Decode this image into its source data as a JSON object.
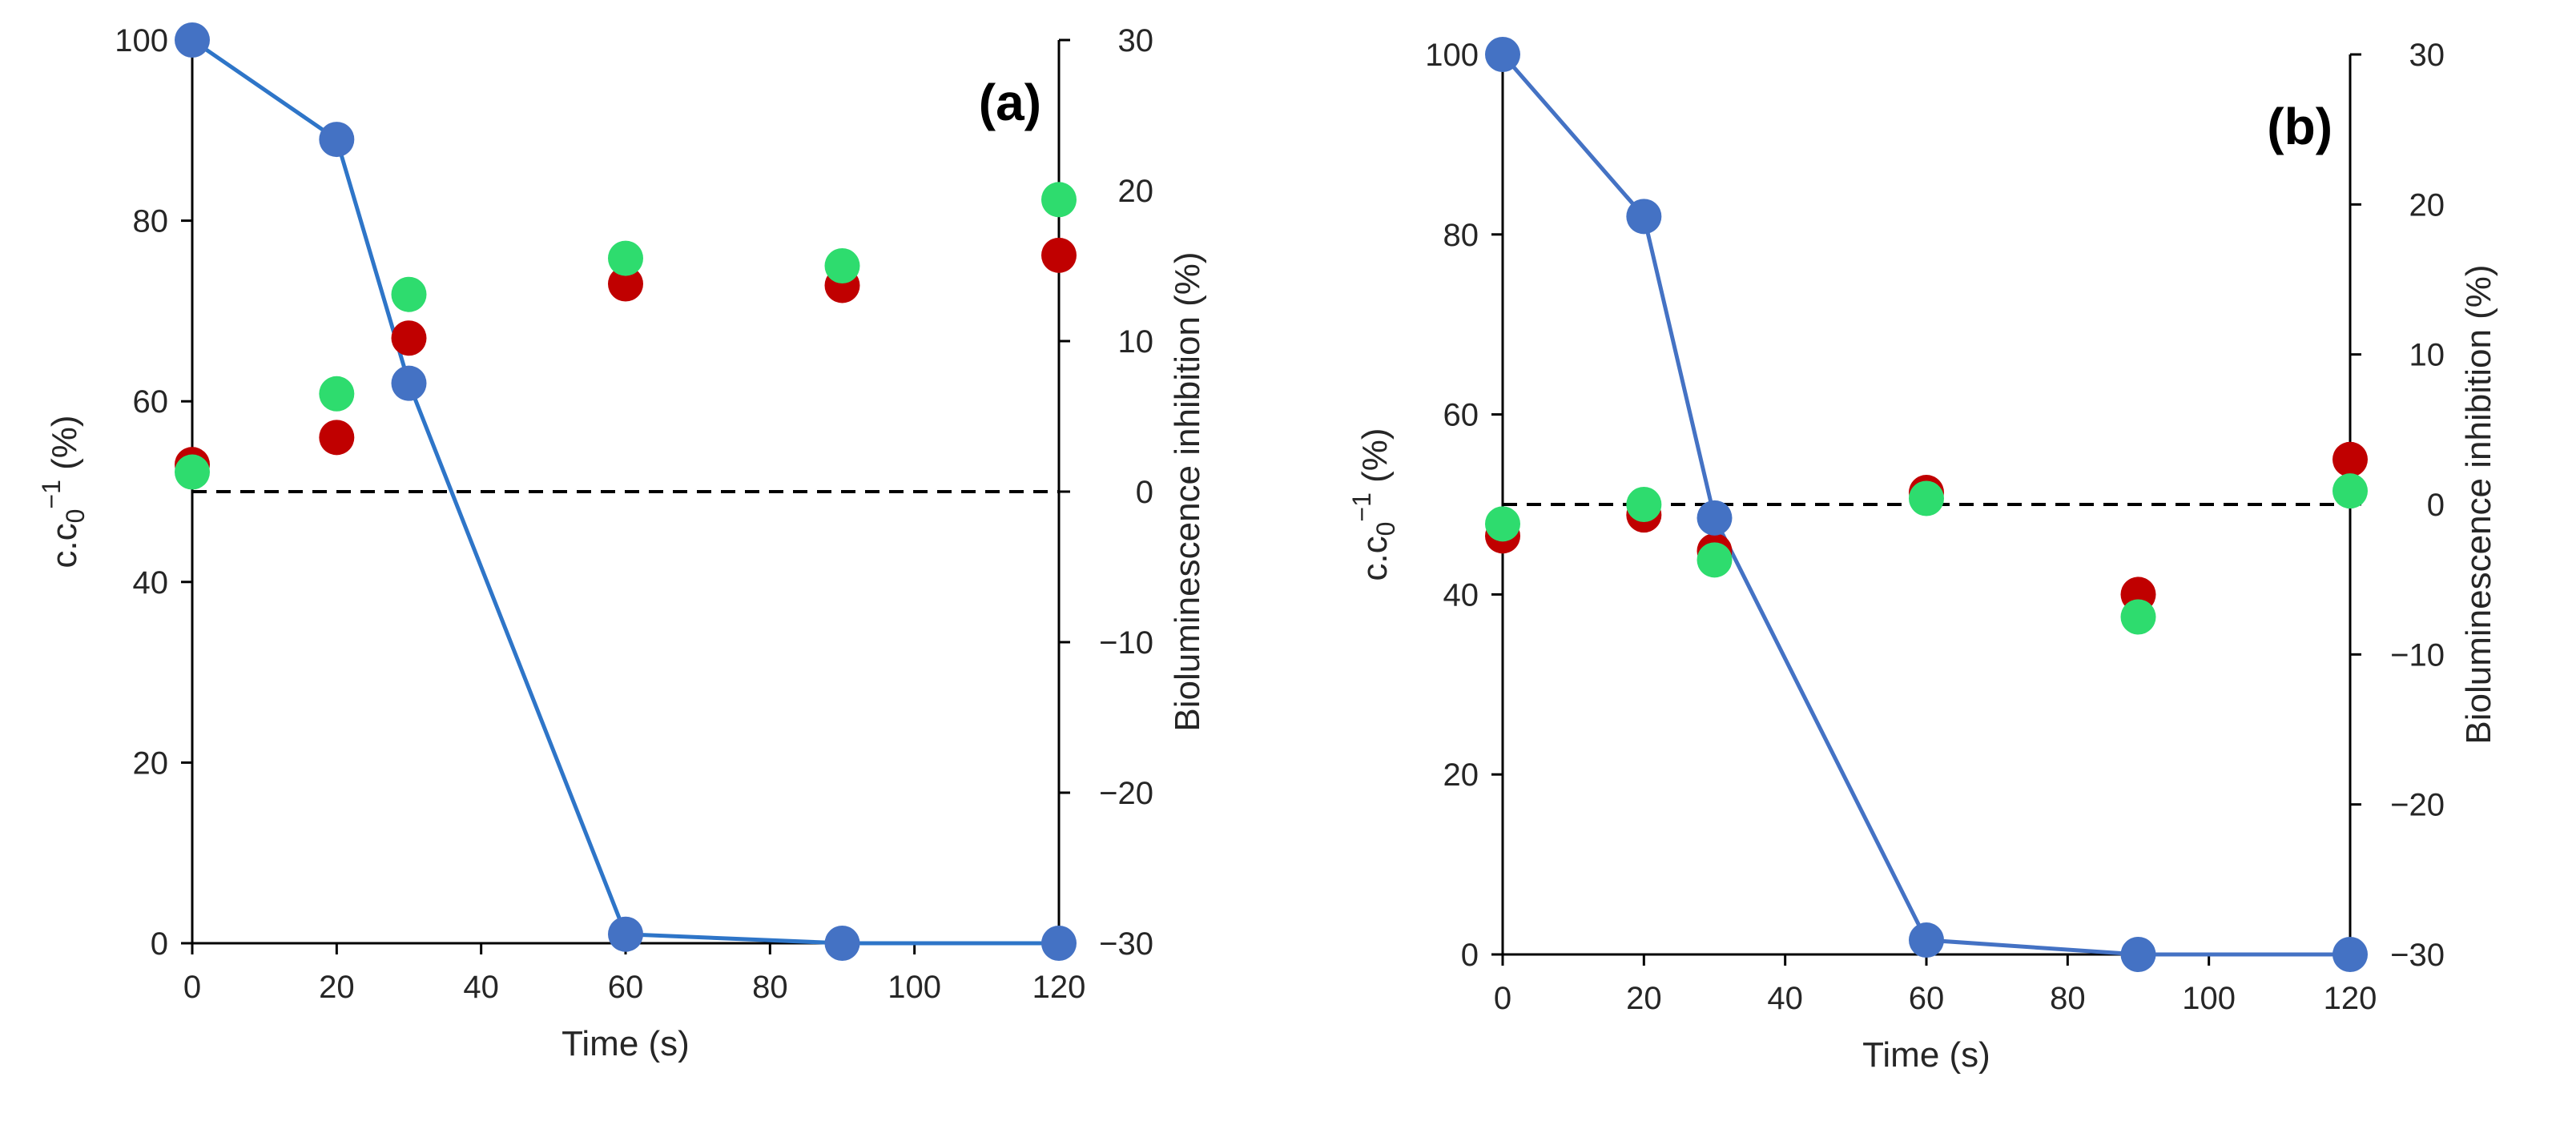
{
  "chart_data": [
    {
      "type": "scatter",
      "panel_label": "(a)",
      "xlabel": "Time (s)",
      "ylabel": "c.c",
      "ylabel_sub": "0",
      "ylabel_sup": "−1",
      "ylabel_tail": " (%)",
      "y2label": "Bioluminescence inhibition (%)",
      "xlim": [
        0,
        120
      ],
      "ylim": [
        0,
        100
      ],
      "y2lim": [
        -30,
        30
      ],
      "xticks": [
        "0",
        "20",
        "40",
        "60",
        "80",
        "100",
        "120"
      ],
      "yticks": [
        "0",
        "20",
        "40",
        "60",
        "80",
        "100"
      ],
      "y2ticks": [
        "−30",
        "−20",
        "−10",
        "0",
        "10",
        "20",
        "30"
      ],
      "reference_line_y2": 0,
      "series": [
        {
          "name": "c/c0",
          "axis": "left",
          "style": "line+marker",
          "color": "#4472c4",
          "line_color": "#2e75c8",
          "x": [
            0,
            20,
            30,
            60,
            90,
            120
          ],
          "y": [
            100,
            89,
            62,
            1,
            0,
            0
          ]
        },
        {
          "name": "Inhibition (red)",
          "axis": "right",
          "style": "marker",
          "color": "#c00000",
          "x": [
            0,
            20,
            30,
            60,
            90,
            120
          ],
          "y": [
            1.8,
            3.6,
            10.2,
            13.8,
            13.7,
            15.7
          ]
        },
        {
          "name": "Inhibition (green)",
          "axis": "right",
          "style": "marker",
          "color": "#2edc6e",
          "x": [
            0,
            20,
            30,
            60,
            90,
            120
          ],
          "y": [
            1.3,
            6.5,
            13.1,
            15.5,
            15.0,
            19.4
          ]
        }
      ]
    },
    {
      "type": "scatter",
      "panel_label": "(b)",
      "xlabel": "Time (s)",
      "ylabel": "c.c",
      "ylabel_sub": "0",
      "ylabel_sup": "−1",
      "ylabel_tail": " (%)",
      "y2label": "Bioluminescence inhibition (%)",
      "xlim": [
        0,
        120
      ],
      "ylim": [
        0,
        100
      ],
      "y2lim": [
        -30,
        30
      ],
      "xticks": [
        "0",
        "20",
        "40",
        "60",
        "80",
        "100",
        "120"
      ],
      "yticks": [
        "0",
        "20",
        "40",
        "60",
        "80",
        "100"
      ],
      "y2ticks": [
        "−30",
        "−20",
        "−10",
        "0",
        "10",
        "20",
        "30"
      ],
      "reference_line_y2": 0,
      "series": [
        {
          "name": "c/c0",
          "axis": "left",
          "style": "line+marker",
          "color": "#4472c4",
          "line_color": "#4472c4",
          "x": [
            0,
            20,
            30,
            60,
            90,
            120
          ],
          "y": [
            100,
            82,
            48.5,
            1.6,
            0,
            0
          ]
        },
        {
          "name": "Inhibition (red)",
          "axis": "right",
          "style": "marker",
          "color": "#c00000",
          "x": [
            0,
            20,
            30,
            60,
            90,
            120
          ],
          "y": [
            -2.1,
            -0.7,
            -3.1,
            0.8,
            -6.0,
            3.0
          ]
        },
        {
          "name": "Inhibition (green)",
          "axis": "right",
          "style": "marker",
          "color": "#2edc6e",
          "x": [
            0,
            20,
            30,
            60,
            90,
            120
          ],
          "y": [
            -1.3,
            0,
            -3.7,
            0.4,
            -7.5,
            0.9
          ]
        }
      ]
    }
  ]
}
